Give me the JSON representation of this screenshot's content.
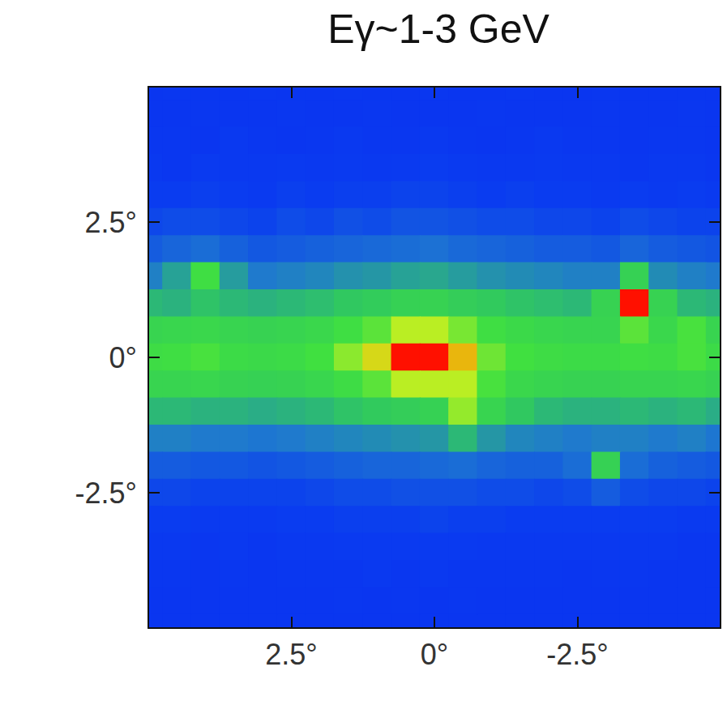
{
  "chart_data": {
    "type": "heatmap",
    "title": "Eγ~1-3 GeV",
    "x": [
      5,
      4.5,
      4,
      3.5,
      3,
      2.5,
      2,
      1.5,
      1,
      0.5,
      0,
      -0.5,
      -1,
      -1.5,
      -2,
      -2.5,
      -3,
      -3.5,
      -4,
      -4.5,
      -5
    ],
    "y": [
      5,
      4.5,
      4,
      3.5,
      3,
      2.5,
      2,
      1.5,
      1,
      0.5,
      0,
      -0.5,
      -1,
      -1.5,
      -2,
      -2.5,
      -3,
      -3.5,
      -4,
      -4.5,
      -5
    ],
    "values": [
      [
        1.0,
        1.1,
        1.0,
        1.0,
        1.1,
        1.0,
        1.0,
        1.1,
        1.0,
        1.0,
        1.1,
        1.0,
        1.0,
        1.1,
        1.0,
        1.0,
        1.1,
        1.0,
        1.0,
        1.0,
        1.0
      ],
      [
        1.0,
        1.0,
        1.1,
        1.0,
        1.0,
        1.1,
        1.0,
        1.0,
        1.1,
        1.0,
        1.0,
        1.0,
        1.1,
        1.0,
        1.0,
        1.0,
        1.1,
        1.0,
        1.0,
        1.1,
        1.0
      ],
      [
        1.1,
        1.1,
        1.0,
        1.2,
        1.1,
        1.0,
        1.1,
        1.2,
        1.1,
        1.1,
        1.2,
        1.1,
        1.0,
        1.1,
        1.2,
        1.1,
        1.1,
        1.0,
        1.1,
        1.1,
        1.0
      ],
      [
        1.2,
        1.1,
        1.3,
        1.2,
        1.2,
        1.3,
        1.2,
        1.3,
        1.2,
        1.3,
        1.4,
        1.3,
        1.2,
        1.2,
        1.3,
        1.2,
        1.2,
        1.1,
        1.2,
        1.2,
        1.1
      ],
      [
        1.4,
        1.4,
        1.5,
        1.4,
        1.3,
        1.5,
        1.4,
        1.5,
        1.5,
        1.6,
        1.6,
        1.5,
        1.4,
        1.5,
        1.4,
        1.4,
        1.3,
        1.4,
        1.3,
        1.4,
        1.3
      ],
      [
        1.7,
        1.8,
        1.8,
        1.7,
        1.6,
        1.8,
        1.7,
        1.9,
        1.8,
        2.0,
        2.0,
        1.9,
        1.8,
        1.8,
        1.7,
        1.7,
        1.6,
        1.8,
        1.7,
        1.6,
        1.6
      ],
      [
        2.2,
        2.4,
        2.6,
        2.3,
        2.1,
        2.2,
        2.3,
        2.4,
        2.5,
        2.6,
        2.7,
        2.5,
        2.4,
        2.3,
        2.2,
        2.2,
        2.1,
        2.4,
        2.2,
        2.1,
        2.0
      ],
      [
        3.0,
        3.6,
        5.6,
        3.5,
        2.9,
        3.0,
        3.1,
        3.3,
        3.4,
        3.6,
        3.7,
        3.5,
        3.3,
        3.2,
        3.1,
        3.0,
        3.0,
        4.8,
        3.2,
        3.0,
        2.9
      ],
      [
        4.0,
        3.9,
        4.2,
        4.0,
        3.9,
        4.0,
        4.1,
        4.3,
        4.5,
        4.8,
        4.9,
        4.6,
        4.4,
        4.2,
        4.1,
        4.0,
        4.9,
        10.0,
        4.9,
        4.0,
        3.9
      ],
      [
        5.0,
        5.1,
        5.2,
        5.0,
        4.9,
        5.0,
        5.2,
        5.6,
        6.0,
        7.0,
        7.0,
        6.3,
        5.6,
        5.3,
        5.1,
        5.0,
        5.0,
        6.0,
        5.2,
        5.8,
        5.0
      ],
      [
        5.5,
        5.6,
        5.8,
        5.4,
        5.3,
        5.4,
        5.7,
        6.5,
        7.5,
        10.0,
        10.0,
        8.0,
        6.2,
        5.7,
        5.5,
        5.4,
        5.4,
        5.6,
        5.5,
        5.8,
        5.4
      ],
      [
        5.0,
        5.0,
        5.1,
        4.9,
        4.8,
        4.9,
        5.1,
        5.5,
        6.0,
        7.0,
        7.0,
        7.0,
        5.8,
        5.2,
        5.0,
        4.9,
        4.9,
        5.0,
        5.0,
        5.1,
        4.9
      ],
      [
        4.0,
        4.0,
        3.9,
        3.9,
        3.8,
        3.9,
        4.0,
        4.2,
        4.4,
        4.6,
        4.8,
        6.6,
        5.0,
        4.3,
        4.0,
        3.9,
        3.9,
        4.0,
        3.9,
        4.0,
        3.8
      ],
      [
        3.0,
        3.0,
        2.9,
        2.9,
        2.8,
        2.9,
        3.0,
        3.1,
        3.2,
        3.3,
        3.4,
        4.0,
        3.4,
        3.1,
        3.0,
        2.9,
        3.0,
        3.0,
        2.9,
        3.0,
        2.8
      ],
      [
        2.2,
        2.2,
        2.1,
        2.1,
        2.0,
        2.1,
        2.2,
        2.3,
        2.4,
        2.4,
        2.5,
        2.6,
        2.4,
        2.3,
        2.3,
        2.6,
        4.8,
        2.6,
        2.3,
        2.2,
        2.1
      ],
      [
        1.7,
        1.7,
        1.6,
        1.6,
        1.6,
        1.6,
        1.7,
        1.8,
        1.8,
        1.9,
        1.9,
        1.9,
        1.8,
        1.8,
        1.7,
        1.8,
        2.2,
        1.8,
        1.7,
        1.7,
        1.6
      ],
      [
        1.4,
        1.4,
        1.3,
        1.3,
        1.3,
        1.4,
        1.4,
        1.5,
        1.5,
        1.5,
        1.6,
        1.5,
        1.5,
        1.4,
        1.4,
        1.4,
        1.4,
        1.4,
        1.4,
        1.3,
        1.3
      ],
      [
        1.2,
        1.2,
        1.1,
        1.2,
        1.1,
        1.2,
        1.2,
        1.3,
        1.3,
        1.3,
        1.3,
        1.3,
        1.2,
        1.2,
        1.2,
        1.2,
        1.2,
        1.2,
        1.2,
        1.1,
        1.1
      ],
      [
        1.1,
        1.1,
        1.0,
        1.1,
        1.0,
        1.1,
        1.1,
        1.1,
        1.2,
        1.1,
        1.2,
        1.1,
        1.1,
        1.1,
        1.1,
        1.0,
        1.1,
        1.1,
        1.0,
        1.0,
        1.0
      ],
      [
        1.0,
        1.0,
        1.0,
        1.0,
        1.0,
        1.0,
        1.0,
        1.1,
        1.0,
        1.1,
        1.0,
        1.1,
        1.0,
        1.0,
        1.0,
        1.0,
        1.0,
        1.0,
        1.0,
        1.0,
        1.0
      ],
      [
        1.0,
        1.0,
        1.0,
        1.0,
        1.0,
        1.0,
        1.0,
        1.0,
        1.0,
        1.0,
        1.0,
        1.0,
        1.0,
        1.0,
        1.0,
        1.0,
        1.0,
        1.0,
        1.0,
        1.0,
        1.0
      ]
    ],
    "zlim": [
      0,
      10
    ],
    "xlim": [
      5,
      -5
    ],
    "ylim": [
      -5,
      5
    ],
    "xticks": [
      {
        "value": 2.5,
        "label": "2.5°"
      },
      {
        "value": 0,
        "label": "0°"
      },
      {
        "value": -2.5,
        "label": "-2.5°"
      }
    ],
    "yticks": [
      {
        "value": 2.5,
        "label": "2.5°"
      },
      {
        "value": 0,
        "label": "0°"
      },
      {
        "value": -2.5,
        "label": "-2.5°"
      }
    ]
  }
}
